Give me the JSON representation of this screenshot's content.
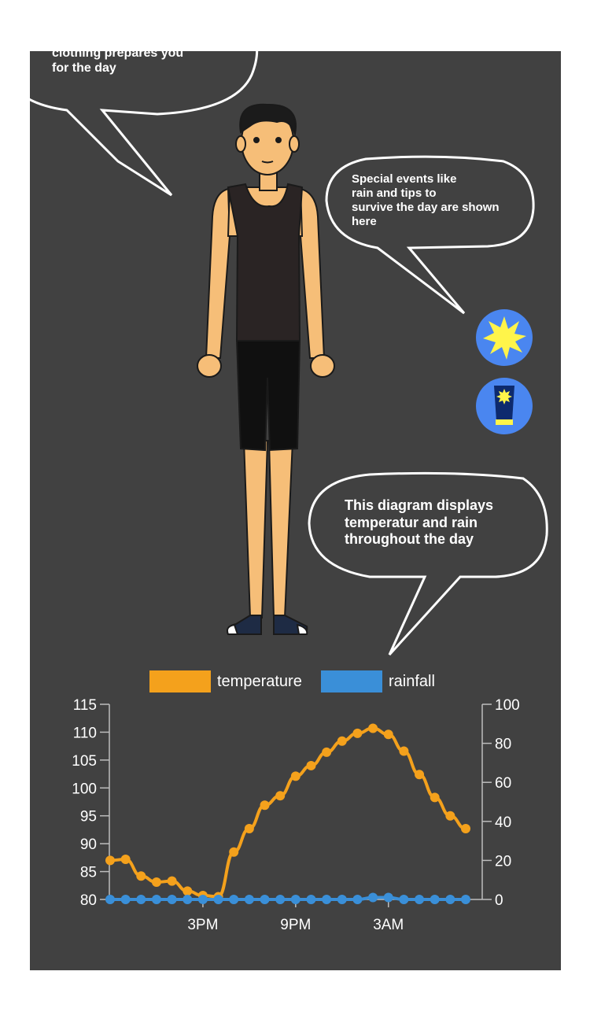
{
  "bubbles": {
    "clothing": {
      "lines": [
        "clothing prepares you",
        "for the day"
      ]
    },
    "events": {
      "lines": [
        "Special events like",
        "rain and tips to",
        "survive the day are shown",
        "here"
      ]
    },
    "diagram": {
      "lines": [
        "This diagram displays",
        "temperatur and rain",
        "throughout the day"
      ]
    }
  },
  "icons": {
    "sun": "sun-icon",
    "sunscreen": "sunscreen-icon",
    "accent": "#4a86f0",
    "sun_color": "#fff44a"
  },
  "chart_data": {
    "type": "line",
    "x_ticks": [
      "3PM",
      "9PM",
      "3AM"
    ],
    "y_left": {
      "min": 80,
      "max": 115,
      "ticks": [
        80,
        85,
        90,
        95,
        100,
        105,
        110,
        115
      ]
    },
    "y_right": {
      "min": 0,
      "max": 100,
      "ticks": [
        0,
        20,
        40,
        60,
        80,
        100
      ]
    },
    "legend_position": "top",
    "grid": false,
    "series": [
      {
        "name": "temperature",
        "axis": "left",
        "color": "#f4a11c",
        "values": [
          87,
          87.2,
          84.2,
          83.1,
          83.3,
          81.5,
          80.7,
          80.5,
          88.5,
          92.7,
          96.9,
          98.6,
          102.1,
          104,
          106.4,
          108.4,
          109.8,
          110.7,
          109.6,
          106.6,
          102.4,
          98.3,
          95,
          92.7
        ]
      },
      {
        "name": "rainfall",
        "axis": "right",
        "color": "#3a8fd8",
        "values": [
          0,
          0,
          0,
          0,
          0,
          0,
          0,
          0,
          0,
          0,
          0,
          0,
          0,
          0,
          0,
          0,
          0,
          1,
          1,
          0,
          0,
          0,
          0,
          0
        ]
      }
    ]
  }
}
